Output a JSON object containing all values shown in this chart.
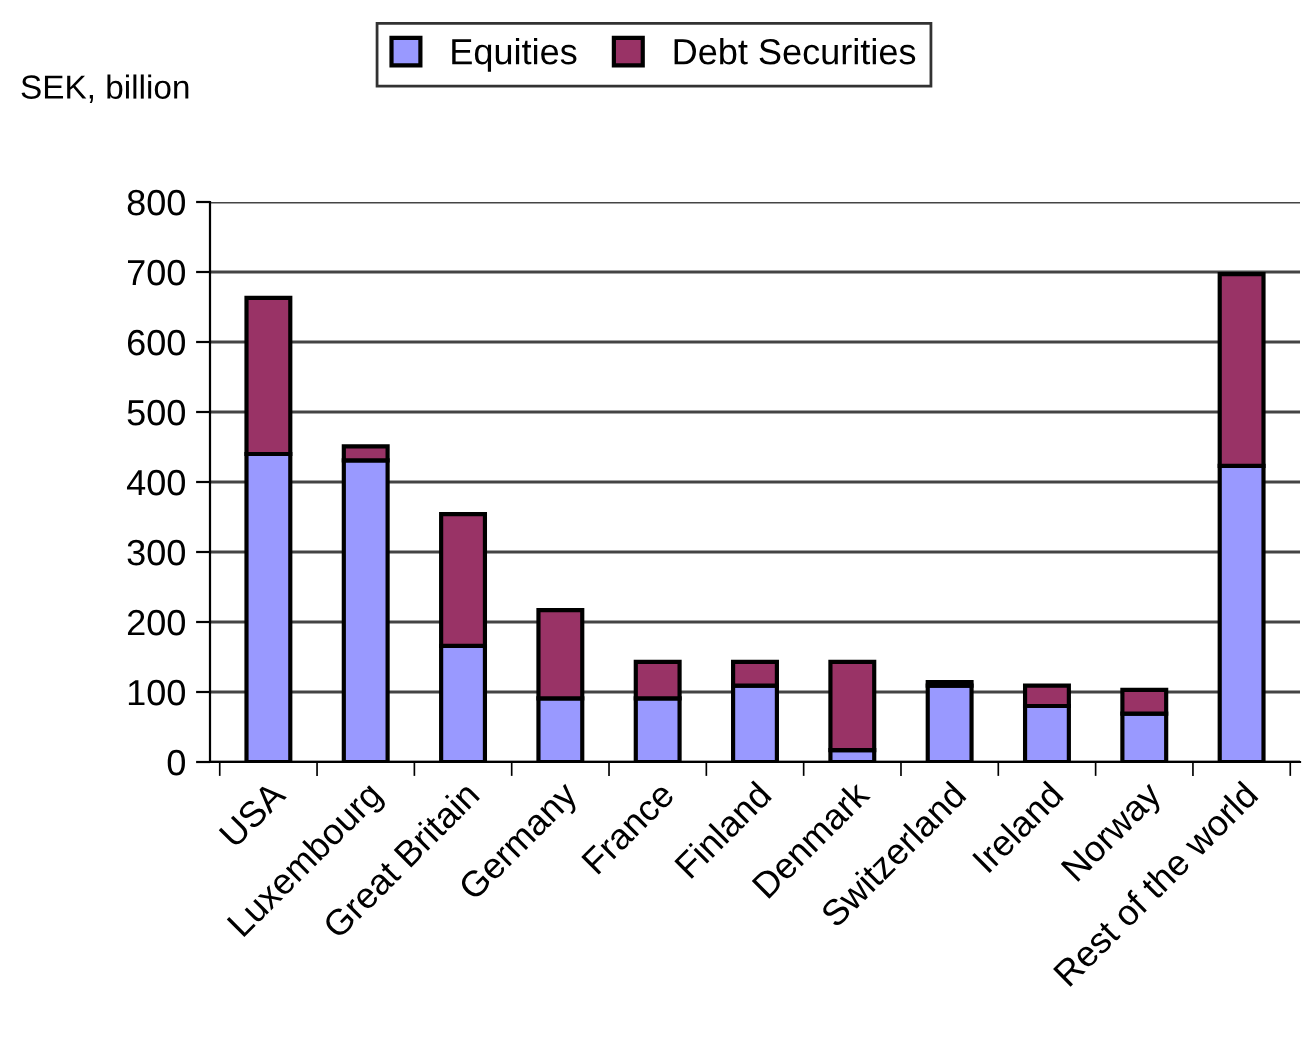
{
  "chart_data": {
    "type": "bar",
    "stacked": true,
    "ylabel": "SEK, billion",
    "categories": [
      "USA",
      "Luxembourg",
      "Great Britain",
      "Germany",
      "France",
      "Finland",
      "Denmark",
      "Switzerland",
      "Ireland",
      "Norway",
      "Rest of the world"
    ],
    "series": [
      {
        "name": "Equities",
        "color": "#9999ff",
        "values": [
          440,
          431,
          166,
          91,
          91,
          109,
          17,
          109,
          80,
          69,
          423
        ]
      },
      {
        "name": "Debt Securities",
        "color": "#993366",
        "values": [
          223,
          20,
          188,
          126,
          52,
          34,
          126,
          5,
          29,
          34,
          274
        ]
      }
    ],
    "ylim": [
      0,
      800
    ],
    "yticks": [
      0,
      100,
      200,
      300,
      400,
      500,
      600,
      700,
      800
    ],
    "grid": "y",
    "legend": "top"
  }
}
